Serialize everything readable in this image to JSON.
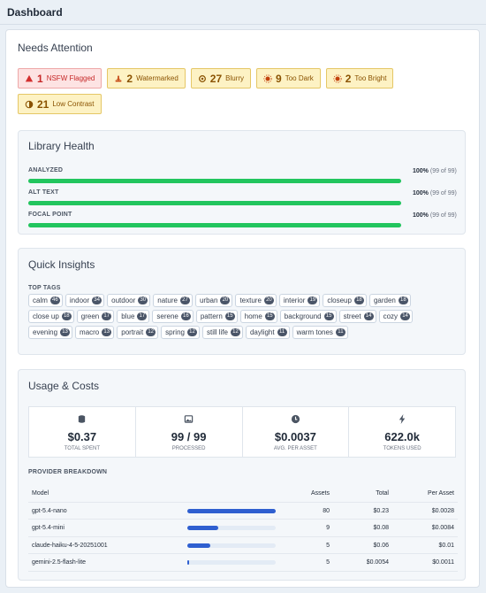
{
  "header": {
    "title": "Dashboard"
  },
  "needs_attention": {
    "title": "Needs Attention",
    "badges": [
      {
        "count": 1,
        "label": "NSFW Flagged"
      },
      {
        "count": 2,
        "label": "Watermarked"
      },
      {
        "count": 27,
        "label": "Blurry"
      },
      {
        "count": 9,
        "label": "Too Dark"
      },
      {
        "count": 2,
        "label": "Too Bright"
      },
      {
        "count": 21,
        "label": "Low Contrast"
      }
    ]
  },
  "library_health": {
    "title": "Library Health",
    "rows": [
      {
        "label": "ANALYZED",
        "percent": 100,
        "percent_label": "100%",
        "detail": "(99 of 99)"
      },
      {
        "label": "ALT TEXT",
        "percent": 100,
        "percent_label": "100%",
        "detail": "(99 of 99)"
      },
      {
        "label": "FOCAL POINT",
        "percent": 100,
        "percent_label": "100%",
        "detail": "(99 of 99)"
      }
    ]
  },
  "quick_insights": {
    "title": "Quick Insights",
    "subtitle": "TOP TAGS",
    "tags": [
      {
        "name": "calm",
        "count": 46
      },
      {
        "name": "indoor",
        "count": 34
      },
      {
        "name": "outdoor",
        "count": 30
      },
      {
        "name": "nature",
        "count": 27
      },
      {
        "name": "urban",
        "count": 20
      },
      {
        "name": "texture",
        "count": 20
      },
      {
        "name": "interior",
        "count": 19
      },
      {
        "name": "closeup",
        "count": 18
      },
      {
        "name": "garden",
        "count": 18
      },
      {
        "name": "close up",
        "count": 18
      },
      {
        "name": "green",
        "count": 17
      },
      {
        "name": "blue",
        "count": 17
      },
      {
        "name": "serene",
        "count": 16
      },
      {
        "name": "pattern",
        "count": 15
      },
      {
        "name": "home",
        "count": 15
      },
      {
        "name": "background",
        "count": 15
      },
      {
        "name": "street",
        "count": 14
      },
      {
        "name": "cozy",
        "count": 14
      },
      {
        "name": "evening",
        "count": 13
      },
      {
        "name": "macro",
        "count": 13
      },
      {
        "name": "portrait",
        "count": 12
      },
      {
        "name": "spring",
        "count": 12
      },
      {
        "name": "still life",
        "count": 12
      },
      {
        "name": "daylight",
        "count": 11
      },
      {
        "name": "warm tones",
        "count": 11
      }
    ]
  },
  "usage": {
    "title": "Usage & Costs",
    "stats": [
      {
        "value": "$0.37",
        "label": "TOTAL SPENT"
      },
      {
        "value": "99 / 99",
        "label": "PROCESSED"
      },
      {
        "value": "$0.0037",
        "label": "AVG. PER ASSET"
      },
      {
        "value": "622.0k",
        "label": "TOKENS USED"
      }
    ],
    "breakdown_title": "PROVIDER BREAKDOWN",
    "columns": [
      "Model",
      "Assets",
      "Total",
      "Per Asset"
    ],
    "rows": [
      {
        "model": "gpt-5.4-nano",
        "assets": 80,
        "total": 0.23,
        "total_label": "$0.23",
        "per_asset": "$0.0028"
      },
      {
        "model": "gpt-5.4-mini",
        "assets": 9,
        "total": 0.08,
        "total_label": "$0.08",
        "per_asset": "$0.0084"
      },
      {
        "model": "claude-haiku-4-5-20251001",
        "assets": 5,
        "total": 0.06,
        "total_label": "$0.06",
        "per_asset": "$0.01"
      },
      {
        "model": "gemini-2.5-flash-lite",
        "assets": 5,
        "total": 0.0054,
        "total_label": "$0.0054",
        "per_asset": "$0.0011"
      }
    ]
  }
}
